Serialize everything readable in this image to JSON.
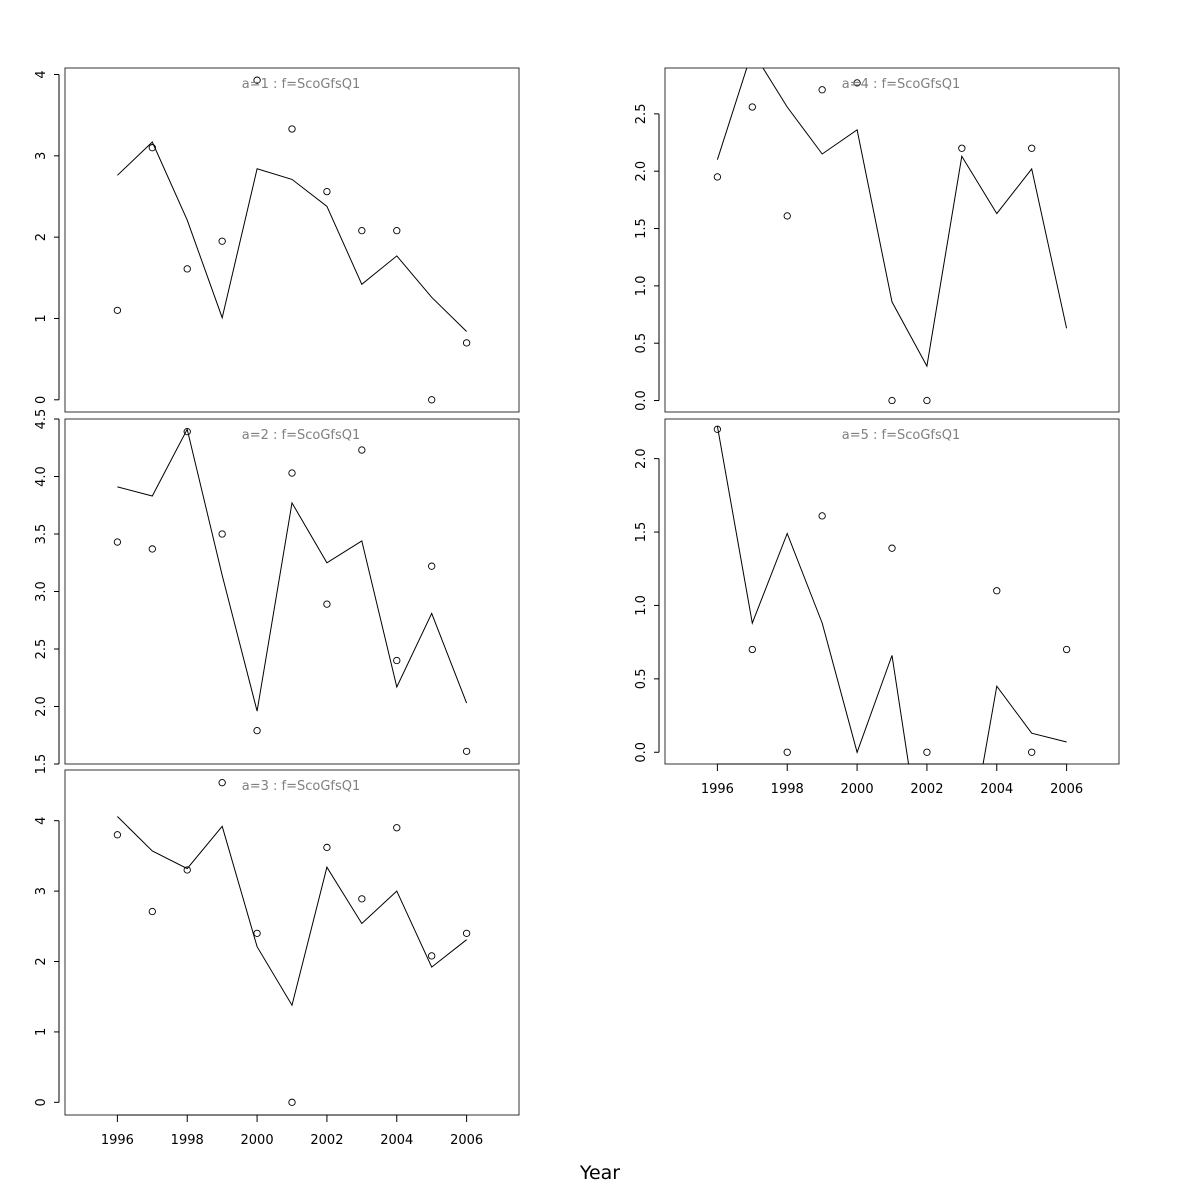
{
  "xlabel": "Year",
  "colors": {
    "line": "#000000",
    "points": "#000000",
    "title": "#808080",
    "frame": "#333333"
  },
  "chart_data": [
    {
      "type": "line",
      "title": "a=1  :  f=ScoGfsQ1",
      "xlim": [
        1994.5,
        2007.5
      ],
      "ylim": [
        -0.15,
        4.08
      ],
      "x_ticks": [
        1996,
        1998,
        2000,
        2002,
        2004,
        2006
      ],
      "y_ticks": [
        0,
        1,
        2,
        3,
        4
      ],
      "y_tick_labels": [
        "0",
        "1",
        "2",
        "3",
        "4"
      ],
      "x_axis_labels_shown": false,
      "x": [
        1996,
        1997,
        1998,
        1999,
        2000,
        2001,
        2002,
        2003,
        2004,
        2005,
        2006
      ],
      "observed": [
        1.1,
        3.1,
        1.61,
        1.95,
        3.93,
        3.33,
        2.56,
        2.08,
        2.08,
        0.0,
        0.7
      ],
      "fitted": [
        2.76,
        3.17,
        2.21,
        1.01,
        2.84,
        2.71,
        2.38,
        1.42,
        1.77,
        1.26,
        0.84
      ]
    },
    {
      "type": "line",
      "title": "a=2  :  f=ScoGfsQ1",
      "xlim": [
        1994.5,
        2007.5
      ],
      "ylim": [
        1.5,
        4.5
      ],
      "x_ticks": [
        1996,
        1998,
        2000,
        2002,
        2004,
        2006
      ],
      "y_ticks": [
        1.5,
        2.0,
        2.5,
        3.0,
        3.5,
        4.0,
        4.5
      ],
      "y_tick_labels": [
        "1.5",
        "2.0",
        "2.5",
        "3.0",
        "3.5",
        "4.0",
        "4.5"
      ],
      "x_axis_labels_shown": false,
      "x": [
        1996,
        1997,
        1998,
        1999,
        2000,
        2001,
        2002,
        2003,
        2004,
        2005,
        2006
      ],
      "observed": [
        3.43,
        3.37,
        4.39,
        3.5,
        1.79,
        4.03,
        2.89,
        4.23,
        2.4,
        3.22,
        1.61
      ],
      "fitted": [
        3.91,
        3.83,
        4.41,
        3.14,
        1.96,
        3.77,
        3.25,
        3.44,
        2.17,
        2.81,
        2.03
      ]
    },
    {
      "type": "line",
      "title": "a=3  :  f=ScoGfsQ1",
      "xlim": [
        1994.5,
        2007.5
      ],
      "ylim": [
        -0.18,
        4.72
      ],
      "x_ticks": [
        1996,
        1998,
        2000,
        2002,
        2004,
        2006
      ],
      "y_ticks": [
        0,
        1,
        2,
        3,
        4
      ],
      "y_tick_labels": [
        "0",
        "1",
        "2",
        "3",
        "4"
      ],
      "x_axis_labels_shown": true,
      "x": [
        1996,
        1997,
        1998,
        1999,
        2000,
        2001,
        2002,
        2003,
        2004,
        2005,
        2006
      ],
      "observed": [
        3.8,
        2.71,
        3.3,
        4.54,
        2.4,
        0.0,
        3.62,
        2.89,
        3.9,
        2.08,
        2.4
      ],
      "fitted": [
        4.06,
        3.57,
        3.32,
        3.92,
        2.21,
        1.38,
        3.34,
        2.54,
        3.0,
        1.92,
        2.31
      ]
    },
    {
      "type": "line",
      "title": "a=4  :  f=ScoGfsQ1",
      "xlim": [
        1994.5,
        2007.5
      ],
      "ylim": [
        -0.1,
        2.9
      ],
      "x_ticks": [
        1996,
        1998,
        2000,
        2002,
        2004,
        2006
      ],
      "y_ticks": [
        0.0,
        0.5,
        1.0,
        1.5,
        2.0,
        2.5
      ],
      "y_tick_labels": [
        "0.0",
        "0.5",
        "1.0",
        "1.5",
        "2.0",
        "2.5"
      ],
      "x_axis_labels_shown": false,
      "x": [
        1996,
        1997,
        1998,
        1999,
        2000,
        2001,
        2002,
        2003,
        2004,
        2005,
        2006
      ],
      "observed": [
        1.95,
        2.56,
        1.61,
        2.71,
        2.77,
        0.0,
        0.0,
        2.2,
        null,
        2.2,
        null
      ],
      "fitted": [
        2.1,
        3.05,
        2.56,
        2.15,
        2.36,
        0.86,
        0.3,
        2.13,
        1.63,
        2.02,
        0.63
      ]
    },
    {
      "type": "line",
      "title": "a=5  :  f=ScoGfsQ1",
      "xlim": [
        1994.5,
        2007.5
      ],
      "ylim": [
        -0.08,
        2.27
      ],
      "x_ticks": [
        1996,
        1998,
        2000,
        2002,
        2004,
        2006
      ],
      "y_ticks": [
        0.0,
        0.5,
        1.0,
        1.5,
        2.0
      ],
      "y_tick_labels": [
        "0.0",
        "0.5",
        "1.0",
        "1.5",
        "2.0"
      ],
      "x_axis_labels_shown": true,
      "x": [
        1996,
        1997,
        1998,
        1999,
        2000,
        2001,
        2002,
        2003,
        2004,
        2005,
        2006
      ],
      "observed": [
        2.2,
        0.7,
        0.0,
        1.61,
        null,
        1.39,
        0.0,
        null,
        1.1,
        0.0,
        0.7
      ],
      "fitted": [
        2.22,
        0.88,
        1.49,
        0.88,
        0.0,
        0.66,
        -0.9,
        -0.9,
        0.45,
        0.13,
        0.07
      ]
    }
  ]
}
